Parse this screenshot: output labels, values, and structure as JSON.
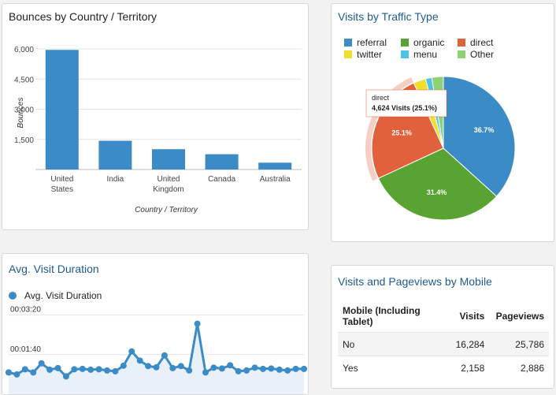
{
  "colors": {
    "title_blue": "#1f5a8e",
    "bar_blue": "#3b8cc6",
    "card_border": "#d6d6d6"
  },
  "bounces": {
    "title": "Bounces by Country / Territory",
    "chart_data": {
      "type": "bar",
      "title": "Bounces by Country / Territory",
      "xlabel": "Country / Territory",
      "ylabel": "Bounces",
      "categories": [
        "United States",
        "India",
        "United Kingdom",
        "Canada",
        "Australia"
      ],
      "category_lines": [
        [
          "United",
          "States"
        ],
        [
          "India"
        ],
        [
          "United",
          "Kingdom"
        ],
        [
          "Canada"
        ],
        [
          "Australia"
        ]
      ],
      "values": [
        5950,
        1430,
        1010,
        760,
        340
      ],
      "yticks": [
        "6,000",
        "4,500",
        "3,000",
        "1,500"
      ],
      "ytick_values": [
        6000,
        4500,
        3000,
        1500
      ],
      "ylim": [
        0,
        6000
      ],
      "grid": true,
      "color": "#3b8cc6"
    }
  },
  "traffic": {
    "title": "Visits by Traffic Type",
    "legend": [
      {
        "name": "referral",
        "color": "#3b8cc6"
      },
      {
        "name": "organic",
        "color": "#58a331"
      },
      {
        "name": "direct",
        "color": "#e0613c"
      },
      {
        "name": "twitter",
        "color": "#f0e02c"
      },
      {
        "name": "menu",
        "color": "#4fc2e8"
      },
      {
        "name": "Other",
        "color": "#8ed373"
      }
    ],
    "tooltip": {
      "title": "direct",
      "text": "4,624 Visits (25.1%)"
    },
    "chart_data": {
      "type": "pie",
      "title": "Visits by Traffic Type",
      "slices": [
        {
          "name": "referral",
          "value": 36.7,
          "label": "36.7%",
          "color": "#3b8cc6"
        },
        {
          "name": "organic",
          "value": 31.4,
          "label": "31.4%",
          "color": "#58a331"
        },
        {
          "name": "direct",
          "value": 25.1,
          "label": "25.1%",
          "color": "#e0613c"
        },
        {
          "name": "twitter",
          "value": 2.8,
          "label": "",
          "color": "#f0e02c"
        },
        {
          "name": "menu",
          "value": 1.4,
          "label": "",
          "color": "#4fc2e8"
        },
        {
          "name": "Other",
          "value": 2.6,
          "label": "",
          "color": "#8ed373"
        }
      ],
      "highlighted": "direct",
      "legend_position": "top"
    }
  },
  "duration": {
    "title": "Avg. Visit Duration",
    "chart_data": {
      "type": "area",
      "title": "Avg. Visit Duration",
      "series": [
        {
          "name": "Avg. Visit Duration",
          "color": "#3b8cc6",
          "values": [
            55,
            50,
            63,
            55,
            78,
            62,
            66,
            45,
            63,
            64,
            62,
            63,
            60,
            58,
            72,
            108,
            85,
            71,
            68,
            98,
            66,
            71,
            60,
            178,
            55,
            67,
            65,
            73,
            58,
            60,
            67,
            64,
            65,
            62,
            60,
            64,
            64
          ]
        }
      ],
      "yticks": [
        "00:03:20",
        "00:01:40"
      ],
      "ytick_values": [
        200,
        100
      ],
      "ylim": [
        0,
        235
      ],
      "grid": true,
      "legend_position": "top"
    }
  },
  "mobile": {
    "title": "Visits and Pageviews by Mobile",
    "columns": [
      "Mobile (Including Tablet)",
      "Visits",
      "Pageviews"
    ],
    "rows": [
      [
        "No",
        "16,284",
        "25,786"
      ],
      [
        "Yes",
        "2,158",
        "2,886"
      ]
    ]
  }
}
